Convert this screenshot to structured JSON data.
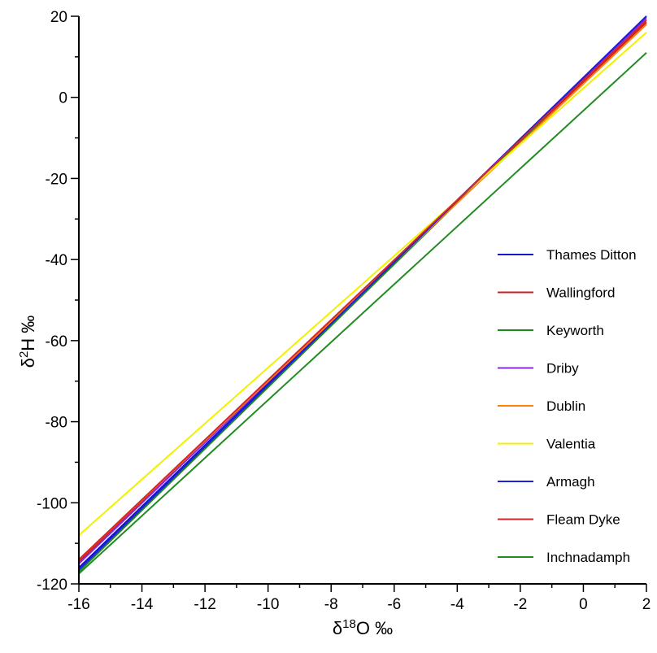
{
  "chart_data": {
    "type": "line",
    "xlabel_main": "δ",
    "xlabel_sup": "18",
    "xlabel_rest": "O ‰",
    "ylabel_main": "δ",
    "ylabel_sup": "2",
    "ylabel_rest": "H ‰",
    "xlim": [
      -16,
      2
    ],
    "ylim": [
      -120,
      20
    ],
    "x_ticks": [
      -16,
      -14,
      -12,
      -10,
      -8,
      -6,
      -4,
      -2,
      0,
      2
    ],
    "y_ticks": [
      20,
      0,
      -20,
      -40,
      -60,
      -80,
      -100,
      -120
    ],
    "x_tick_labels": [
      "-16",
      "-14",
      "-12",
      "-10",
      "-8",
      "-6",
      "-4",
      "-2",
      "0",
      "2"
    ],
    "y_tick_labels": [
      "20",
      "0",
      "-20",
      "-40",
      "-60",
      "-80",
      "-100",
      "-120"
    ],
    "grid": false,
    "legend_position": "right",
    "series": [
      {
        "name": "Thames Ditton",
        "color": "#1010cc",
        "x": [
          -16,
          2
        ],
        "y": [
          -116,
          20
        ]
      },
      {
        "name": "Wallingford",
        "color": "#cc1f1f",
        "x": [
          -16,
          2
        ],
        "y": [
          -114.5,
          18.5
        ]
      },
      {
        "name": "Keyworth",
        "color": "#1a8a1a",
        "x": [
          -16,
          2
        ],
        "y": [
          -117,
          19.5
        ]
      },
      {
        "name": "Driby",
        "color": "#8a2be2",
        "x": [
          -16,
          2
        ],
        "y": [
          -115,
          19.5
        ]
      },
      {
        "name": "Dublin",
        "color": "#ff7f0e",
        "x": [
          -16,
          2
        ],
        "y": [
          -114,
          18
        ]
      },
      {
        "name": "Valentia",
        "color": "#f2f200",
        "x": [
          -16,
          2
        ],
        "y": [
          -108,
          16
        ]
      },
      {
        "name": "Armagh",
        "color": "#1f1fe0",
        "x": [
          -16,
          2
        ],
        "y": [
          -116.5,
          20
        ]
      },
      {
        "name": "Fleam Dyke",
        "color": "#d62728",
        "x": [
          -16,
          2
        ],
        "y": [
          -114,
          19
        ]
      },
      {
        "name": "Inchnadamph",
        "color": "#228b22",
        "x": [
          -16,
          2
        ],
        "y": [
          -117.5,
          11
        ]
      }
    ]
  }
}
